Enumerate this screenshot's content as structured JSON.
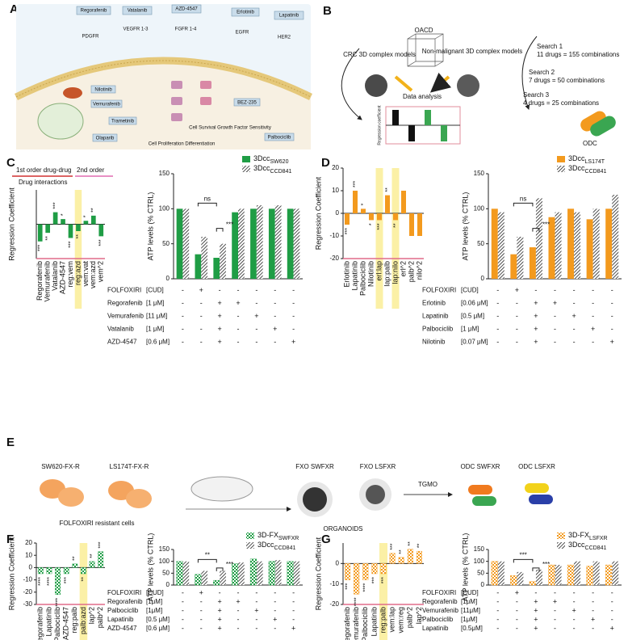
{
  "panel_labels": [
    "A",
    "B",
    "C",
    "D",
    "E",
    "F",
    "G"
  ],
  "diagram_a": {
    "drugs_top": [
      "Regorafenib",
      "Vatalanib",
      "AZD-4547",
      "Erlotinib",
      "Lapatinib"
    ],
    "receptors": [
      "PDGFR",
      "VEGFR 1-3",
      "FGFR 1-4",
      "EGFR",
      "HER2"
    ],
    "drugs_inner": [
      "Nilotinib",
      "Vemurafenib",
      "Trametinib",
      "Olaparib",
      "BEZ-235",
      "Palbociclib"
    ],
    "outcomes": [
      "Cell Proliferation Differentiation",
      "Cell Survival Growth Factor Sensitivity"
    ]
  },
  "diagram_b": {
    "oacd": "OACD",
    "crc": "CRC 3D complex models",
    "nonmalignant": "Non-malignant 3D complex models",
    "analysis": "Data analysis",
    "axis": "Regression coefficient",
    "searches": [
      {
        "title": "Search 1",
        "detail": "11 drugs = 155 combinations"
      },
      {
        "title": "Search 2",
        "detail": "7 drugs = 50 combinations"
      },
      {
        "title": "Search 3",
        "detail": "4 drugs = 25 combinations"
      }
    ],
    "odc": "ODC"
  },
  "diagram_e": {
    "lines": [
      "SW620-FX-R",
      "LS174T-FX-R"
    ],
    "cells": "FOLFOXIRI resistant cells",
    "fxo": [
      "FXO SWFXR",
      "FXO LSFXR"
    ],
    "organoids": "ORGANOIDS",
    "tgmo": "TGMO",
    "odc": [
      "ODC SWFXR",
      "ODC LSFXR"
    ]
  },
  "chart_data": [
    {
      "type": "regression",
      "ylabel": "Regression Coefficient",
      "annotations": [
        "1st order drug-drug",
        "2nd order",
        "Drug interactions"
      ],
      "categories": [
        "Regorafenib",
        "Vemurafenib",
        "Vatalanib",
        "AZD-4547",
        "reg:vem",
        "reg:azd",
        "vem:vat",
        "vem:azd",
        "vem^2"
      ],
      "values": [
        -10,
        -5,
        7,
        3,
        -8,
        -4,
        2,
        5,
        -7
      ],
      "significance": [
        "***",
        "**",
        "***",
        "*",
        "***",
        "**",
        "*",
        "**",
        "***"
      ],
      "highlight": [
        "reg:azd"
      ],
      "color": "#1f9d45",
      "ylim": [
        -20,
        20
      ]
    },
    {
      "type": "atp",
      "ylabel": "ATP levels (% CTRL)",
      "ylim": [
        0,
        150
      ],
      "yticks": [
        0,
        50,
        100,
        150
      ],
      "series": [
        {
          "name": "3Dcc",
          "name_sub": "SW620",
          "color": "#1f9d45",
          "pattern": "solid",
          "values": [
            100,
            35,
            30,
            95,
            100,
            100,
            100
          ]
        },
        {
          "name": "3Dcc",
          "name_sub": "CCD841",
          "color": "#333333",
          "pattern": "hatch",
          "values": [
            100,
            60,
            50,
            100,
            105,
            105,
            100
          ]
        }
      ],
      "annotations": [
        "ns",
        "***"
      ],
      "conditions": [
        {
          "drug": "FOLFOXIRI",
          "dose": "[CUD]",
          "signs": [
            "-",
            "+",
            "-",
            "-",
            "-",
            "-",
            "-"
          ]
        },
        {
          "drug": "Regorafenib",
          "dose": "[1 μM]",
          "signs": [
            "-",
            "-",
            "+",
            "+",
            "-",
            "-",
            "-"
          ]
        },
        {
          "drug": "Vemurafenib",
          "dose": "[11 μM]",
          "signs": [
            "-",
            "-",
            "+",
            "-",
            "+",
            "-",
            "-"
          ]
        },
        {
          "drug": "Vatalanib",
          "dose": "[1 μM]",
          "signs": [
            "-",
            "-",
            "+",
            "-",
            "-",
            "+",
            "-"
          ]
        },
        {
          "drug": "AZD-4547",
          "dose": "[0.6 μM]",
          "signs": [
            "-",
            "-",
            "+",
            "-",
            "-",
            "-",
            "+"
          ]
        }
      ]
    },
    {
      "type": "regression",
      "ylabel": "Regression Coefficient",
      "categories": [
        "Erlotinib",
        "Lapatinib",
        "Palbociclib",
        "Nilotinib",
        "erl:lap",
        "lap:palb",
        "lap:nilo",
        "erl^2",
        "palb^2",
        "nilo^2"
      ],
      "values": [
        -5,
        10,
        2,
        -3,
        -3,
        8,
        -3,
        10,
        -10,
        -10
      ],
      "significance": [
        "***",
        "***",
        "*",
        "*",
        "***",
        "**",
        "**",
        null,
        null,
        null
      ],
      "highlight": [
        "erl:lap",
        "lap:nilo"
      ],
      "color": "#f39a1e",
      "ylim": [
        -20,
        20
      ],
      "yticks": [
        -20,
        -10,
        0,
        10,
        20
      ]
    },
    {
      "type": "atp",
      "ylabel": "ATP levels (% CTRL)",
      "ylim": [
        0,
        150
      ],
      "yticks": [
        0,
        50,
        100,
        150
      ],
      "series": [
        {
          "name": "3Dcc",
          "name_sub": "LS174T",
          "color": "#f39a1e",
          "pattern": "solid",
          "values": [
            100,
            35,
            45,
            88,
            100,
            85,
            100
          ]
        },
        {
          "name": "3Dcc",
          "name_sub": "CCD841",
          "color": "#333333",
          "pattern": "hatch",
          "values": [
            95,
            60,
            115,
            95,
            95,
            100,
            120
          ]
        }
      ],
      "annotations": [
        "ns",
        "***"
      ],
      "conditions": [
        {
          "drug": "FOLFOXIRI",
          "dose": "[CUD]",
          "signs": [
            "-",
            "+",
            "-",
            "-",
            "-",
            "-",
            "-"
          ]
        },
        {
          "drug": "Erlotinib",
          "dose": "[0.06 μM]",
          "signs": [
            "-",
            "-",
            "+",
            "+",
            "-",
            "-",
            "-"
          ]
        },
        {
          "drug": "Lapatinib",
          "dose": "[0.5 μM]",
          "signs": [
            "-",
            "-",
            "+",
            "-",
            "+",
            "-",
            "-"
          ]
        },
        {
          "drug": "Palbociclib",
          "dose": "[1 μM]",
          "signs": [
            "-",
            "-",
            "+",
            "-",
            "-",
            "+",
            "-"
          ]
        },
        {
          "drug": "Nilotinib",
          "dose": "[0.07 μM]",
          "signs": [
            "-",
            "-",
            "+",
            "-",
            "-",
            "-",
            "+"
          ]
        }
      ]
    },
    {
      "type": "regression",
      "ylabel": "Regression Coefficient",
      "categories": [
        "Regorafenib",
        "Lapatinib",
        "Palbociclib",
        "AZD-4547",
        "reg:palb",
        "palb:azd",
        "lap^2",
        "palb^2"
      ],
      "values": [
        -5,
        -5,
        -22,
        -5,
        3,
        -5,
        5,
        13
      ],
      "significance": [
        "****",
        "****",
        "****",
        "***",
        "**",
        "**",
        "**",
        "***"
      ],
      "highlight": [
        "palb:azd"
      ],
      "color": "#1f9d45",
      "pattern": "checker",
      "ylim": [
        -30,
        20
      ],
      "yticks": [
        -30,
        -20,
        -10,
        0,
        10,
        20
      ]
    },
    {
      "type": "atp",
      "ylabel": "ATP levels (% CTRL)",
      "ylim": [
        0,
        150
      ],
      "yticks": [
        0,
        50,
        100,
        150
      ],
      "series": [
        {
          "name": "3D-FX",
          "name_sub": "SWFXR",
          "color": "#1f9d45",
          "pattern": "checker",
          "values": [
            100,
            45,
            20,
            90,
            110,
            100,
            100
          ]
        },
        {
          "name": "3Dcc",
          "name_sub": "CCD841",
          "color": "#333333",
          "pattern": "hatch",
          "values": [
            100,
            60,
            60,
            95,
            100,
            105,
            100
          ]
        }
      ],
      "annotations": [
        "**",
        "***"
      ],
      "conditions": [
        {
          "drug": "FOLFOXIRI",
          "dose": "[CUD]",
          "signs": [
            "-",
            "+",
            "-",
            "-",
            "-",
            "-",
            "-"
          ]
        },
        {
          "drug": "Regorafenib",
          "dose": "[1μM]",
          "signs": [
            "-",
            "-",
            "+",
            "+",
            "-",
            "-",
            "-"
          ]
        },
        {
          "drug": "Palbociclib",
          "dose": "[1μM]",
          "signs": [
            "-",
            "-",
            "+",
            "-",
            "+",
            "-",
            "-"
          ]
        },
        {
          "drug": "Lapatinib",
          "dose": "[0.5 μM]",
          "signs": [
            "-",
            "-",
            "+",
            "-",
            "-",
            "+",
            "-"
          ]
        },
        {
          "drug": "AZD-4547",
          "dose": "[0.6 μM]",
          "signs": [
            "-",
            "-",
            "+",
            "-",
            "-",
            "-",
            "+"
          ]
        }
      ]
    },
    {
      "type": "regression",
      "ylabel": "Regression Coefficient",
      "categories": [
        "Regorafenib",
        "Vemurafenib",
        "Palbociclib",
        "Lapatinib",
        "reg:palb",
        "vem:lap",
        "vem:reg",
        "palb^2",
        "lap^2"
      ],
      "values": [
        -8,
        -15,
        -8,
        -5,
        -5,
        5,
        3,
        7,
        6
      ],
      "significance": [
        "***",
        "****",
        "****",
        "***",
        "***",
        "***",
        "**",
        "**",
        "**"
      ],
      "highlight": [
        "reg:palb"
      ],
      "color": "#f39a1e",
      "pattern": "checker",
      "ylim": [
        -20,
        10
      ],
      "yticks": [
        -20,
        -10,
        0
      ]
    },
    {
      "type": "atp",
      "ylabel": "ATP levels (% CTRL)",
      "ylim": [
        0,
        150
      ],
      "yticks": [
        0,
        50,
        100,
        150
      ],
      "series": [
        {
          "name": "3D-FX",
          "name_sub": "LSFXR",
          "color": "#f39a1e",
          "pattern": "checker",
          "values": [
            100,
            40,
            15,
            85,
            85,
            80,
            85
          ]
        },
        {
          "name": "3Dcc",
          "name_sub": "CCD841",
          "color": "#333333",
          "pattern": "hatch",
          "values": [
            100,
            55,
            65,
            85,
            100,
            100,
            100
          ]
        }
      ],
      "annotations": [
        "***",
        "***"
      ],
      "conditions": [
        {
          "drug": "FOLFOXIRI",
          "dose": "[CUD]",
          "signs": [
            "-",
            "+",
            "-",
            "-",
            "-",
            "-",
            "-"
          ]
        },
        {
          "drug": "Regorafenib",
          "dose": "[1μM]",
          "signs": [
            "-",
            "-",
            "+",
            "+",
            "-",
            "-",
            "-"
          ]
        },
        {
          "drug": "Vemurafenib",
          "dose": "[11μM]",
          "signs": [
            "-",
            "-",
            "+",
            "-",
            "+",
            "-",
            "-"
          ]
        },
        {
          "drug": "Palbociclib",
          "dose": "[1μM]",
          "signs": [
            "-",
            "-",
            "+",
            "-",
            "-",
            "+",
            "-"
          ]
        },
        {
          "drug": "Lapatinib",
          "dose": "[0.5μM]",
          "signs": [
            "-",
            "-",
            "+",
            "-",
            "-",
            "-",
            "+"
          ]
        }
      ]
    }
  ]
}
